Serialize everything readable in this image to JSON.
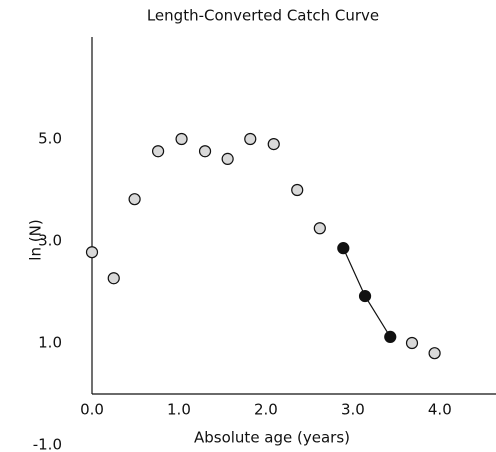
{
  "chart_data": {
    "type": "scatter",
    "title": "Length-Converted Catch Curve",
    "xlabel": "Absolute age (years)",
    "ylabel": "ln (N)",
    "xlim": [
      0,
      4.6
    ],
    "ylim": [
      -1,
      7
    ],
    "xticks": [
      {
        "value": 0,
        "label": "0.0"
      },
      {
        "value": 1,
        "label": "1.0"
      },
      {
        "value": 2,
        "label": "2.0"
      },
      {
        "value": 3,
        "label": "3.0"
      },
      {
        "value": 4,
        "label": "4.0"
      }
    ],
    "yticks": [
      {
        "value": -1,
        "label": "-1.0"
      },
      {
        "value": 1,
        "label": "1.0"
      },
      {
        "value": 3,
        "label": "3.0"
      },
      {
        "value": 5,
        "label": "5.0"
      }
    ],
    "series": [
      {
        "color": "#d9d9d9",
        "line": false,
        "x": [
          0.0,
          0.25,
          0.49,
          0.76,
          1.03,
          1.3,
          1.56,
          1.82,
          2.09,
          2.36,
          2.62,
          3.68,
          3.94
        ],
        "values": [
          2.78,
          2.27,
          3.82,
          4.76,
          5.0,
          4.76,
          4.61,
          5.0,
          4.9,
          4.0,
          3.25,
          1.0,
          0.8
        ]
      },
      {
        "color": "#111111",
        "line": true,
        "x": [
          2.89,
          3.14,
          3.43
        ],
        "values": [
          2.86,
          1.92,
          1.12
        ]
      }
    ]
  }
}
